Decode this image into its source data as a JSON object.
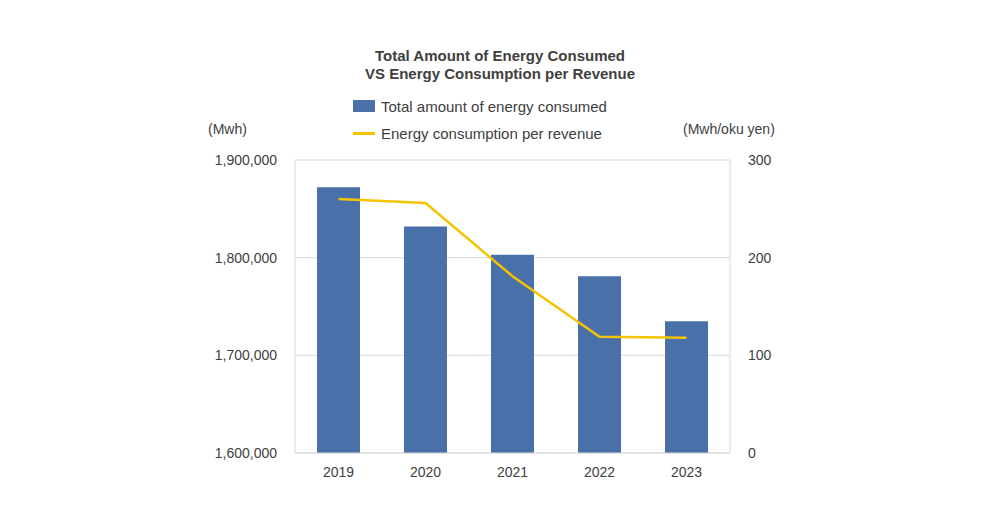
{
  "chart_data": {
    "type": "bar",
    "title": "Total Amount of Energy Consumed\nVS Energy Consumption per Revenue",
    "categories": [
      "2019",
      "2020",
      "2021",
      "2022",
      "2023"
    ],
    "series": [
      {
        "name": "Total amount of energy consumed",
        "type": "bar",
        "color": "#4a70a9",
        "values": [
          1872000,
          1832000,
          1803000,
          1781000,
          1735000
        ]
      },
      {
        "name": "Energy consumption per revenue",
        "type": "line",
        "color": "#f5c400",
        "axis": "y2",
        "marker": "none",
        "values": [
          260,
          256,
          181,
          119,
          118
        ]
      }
    ],
    "ylabel": "(Mwh)",
    "y2label": "(Mwh/oku yen)",
    "ylim": [
      1600000,
      1900000
    ],
    "yticks": [
      {
        "value": 1600000,
        "label": "1,600,000"
      },
      {
        "value": 1700000,
        "label": "1,700,000"
      },
      {
        "value": 1800000,
        "label": "1,800,000"
      },
      {
        "value": 1900000,
        "label": "1,900,000"
      }
    ],
    "y2lim": [
      0,
      300
    ],
    "y2ticks": [
      0,
      100,
      200,
      300
    ],
    "grid": true,
    "legend": "top"
  }
}
